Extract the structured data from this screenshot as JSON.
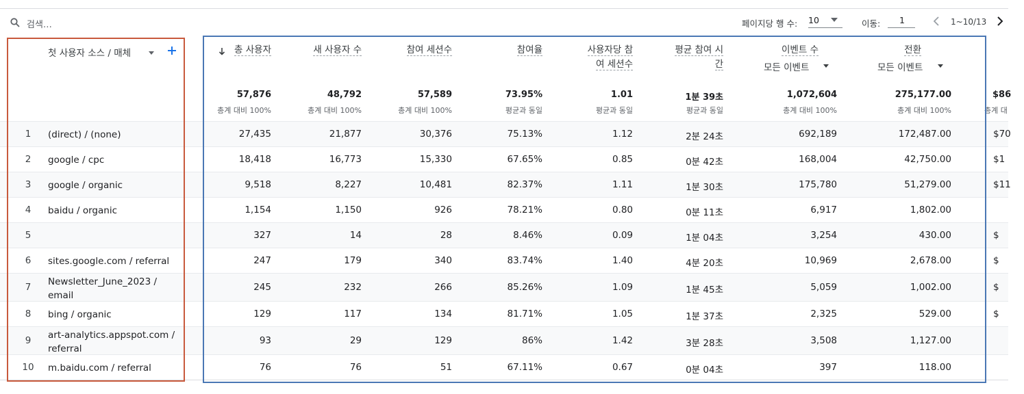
{
  "toolbar": {
    "search_placeholder": "검색…",
    "rows_per_page_label": "페이지당 행 수:",
    "rows_per_page_value": "10",
    "goto_label": "이동:",
    "goto_value": "1",
    "range_text": "1~10/13"
  },
  "dimension": {
    "header": "첫 사용자 소스 / 매체"
  },
  "metrics": [
    {
      "line1": "총 사용자",
      "line2": "",
      "sorted": true
    },
    {
      "line1": "새 사용자 수",
      "line2": ""
    },
    {
      "line1": "참여 세션수",
      "line2": ""
    },
    {
      "line1": "참여율",
      "line2": ""
    },
    {
      "line1": "사용자당 참",
      "line2": "여 세션수"
    },
    {
      "line1": "평균 참여 시",
      "line2": "간"
    },
    {
      "line1": "이벤트 수",
      "line2": "",
      "sub": "모든 이벤트"
    },
    {
      "line1": "전환",
      "line2": "",
      "sub": "모든 이벤트"
    }
  ],
  "totals": [
    {
      "value": "57,876",
      "sub": "총계 대비 100%"
    },
    {
      "value": "48,792",
      "sub": "총계 대비 100%"
    },
    {
      "value": "57,589",
      "sub": "총계 대비 100%"
    },
    {
      "value": "73.95%",
      "sub": "평균과 동일"
    },
    {
      "value": "1.01",
      "sub": "평균과 동일"
    },
    {
      "value": "1분 39초",
      "sub": "평균과 동일"
    },
    {
      "value": "1,072,604",
      "sub": "총계 대비 100%"
    },
    {
      "value": "275,177.00",
      "sub": "총계 대비 100%"
    },
    {
      "value": "$86",
      "sub": "총계 대"
    }
  ],
  "rows": [
    {
      "rank": "1",
      "dim": "(direct) / (none)",
      "values": [
        "27,435",
        "21,877",
        "30,376",
        "75.13%",
        "1.12",
        "2분 24초",
        "692,189",
        "172,487.00",
        "$70"
      ]
    },
    {
      "rank": "2",
      "dim": "google / cpc",
      "values": [
        "18,418",
        "16,773",
        "15,330",
        "67.65%",
        "0.85",
        "0분 42초",
        "168,004",
        "42,750.00",
        "$1"
      ]
    },
    {
      "rank": "3",
      "dim": "google / organic",
      "values": [
        "9,518",
        "8,227",
        "10,481",
        "82.37%",
        "1.11",
        "1분 30초",
        "175,780",
        "51,279.00",
        "$11"
      ]
    },
    {
      "rank": "4",
      "dim": "baidu / organic",
      "values": [
        "1,154",
        "1,150",
        "926",
        "78.21%",
        "0.80",
        "0분 11초",
        "6,917",
        "1,802.00",
        ""
      ]
    },
    {
      "rank": "5",
      "dim": "",
      "values": [
        "327",
        "14",
        "28",
        "8.46%",
        "0.09",
        "1분 04초",
        "3,254",
        "430.00",
        "$"
      ]
    },
    {
      "rank": "6",
      "dim": "sites.google.com / referral",
      "values": [
        "247",
        "179",
        "340",
        "83.74%",
        "1.40",
        "4분 20초",
        "10,969",
        "2,678.00",
        "$"
      ]
    },
    {
      "rank": "7",
      "dim": "Newsletter_June_2023 / email",
      "values": [
        "245",
        "232",
        "266",
        "85.26%",
        "1.09",
        "1분 45초",
        "5,059",
        "1,002.00",
        "$"
      ]
    },
    {
      "rank": "8",
      "dim": "bing / organic",
      "values": [
        "129",
        "117",
        "134",
        "81.71%",
        "1.05",
        "1분 37초",
        "2,325",
        "529.00",
        "$"
      ]
    },
    {
      "rank": "9",
      "dim": "art-analytics.appspot.com / referral",
      "values": [
        "93",
        "29",
        "129",
        "86%",
        "1.42",
        "3분 28초",
        "3,508",
        "1,127.00",
        ""
      ]
    },
    {
      "rank": "10",
      "dim": "m.baidu.com / referral",
      "values": [
        "76",
        "76",
        "51",
        "67.11%",
        "0.67",
        "0분 04초",
        "397",
        "118.00",
        ""
      ]
    }
  ]
}
